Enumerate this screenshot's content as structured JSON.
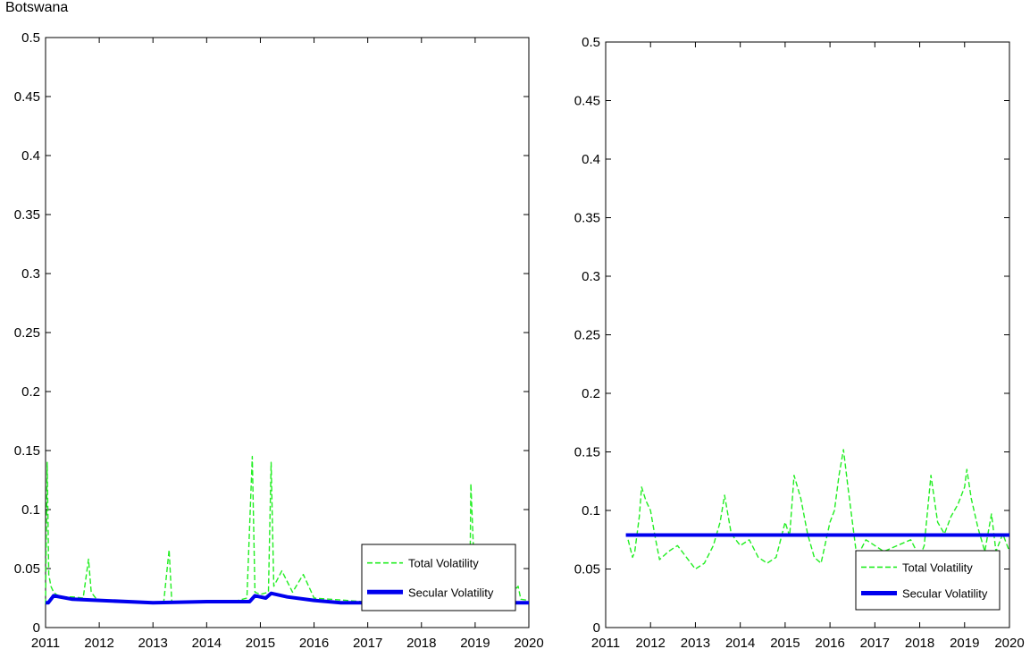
{
  "title": "Botswana",
  "colors": {
    "total": "#22ee22",
    "secular": "#0000ee",
    "axis": "#000000"
  },
  "legend": {
    "total_label": "Total Volatility",
    "secular_label": "Secular Volatility",
    "placement": "bottom-right"
  },
  "chart_data": [
    {
      "type": "line",
      "xlim": [
        2011,
        2020
      ],
      "ylim": [
        0,
        0.5
      ],
      "xticks": [
        "2011",
        "2012",
        "2013",
        "2014",
        "2015",
        "2016",
        "2017",
        "2018",
        "2019",
        "2020"
      ],
      "yticks": [
        "0",
        "0.05",
        "0.1",
        "0.15",
        "0.2",
        "0.25",
        "0.3",
        "0.35",
        "0.4",
        "0.45",
        "0.5"
      ],
      "grid": false,
      "series": [
        {
          "name": "Total Volatility",
          "style": "dashed",
          "x": [
            2011.0,
            2011.03,
            2011.06,
            2011.1,
            2011.15,
            2011.2,
            2011.3,
            2011.5,
            2011.7,
            2011.8,
            2011.85,
            2011.95,
            2012.2,
            2012.5,
            2012.8,
            2013.0,
            2013.2,
            2013.3,
            2013.35,
            2013.5,
            2013.8,
            2014.0,
            2014.3,
            2014.5,
            2014.75,
            2014.85,
            2014.9,
            2015.0,
            2015.15,
            2015.2,
            2015.25,
            2015.4,
            2015.6,
            2015.8,
            2016.0,
            2016.3,
            2016.6,
            2016.9,
            2017.2,
            2017.5,
            2017.8,
            2018.1,
            2018.4,
            2018.7,
            2018.9,
            2018.92,
            2019.0,
            2019.3,
            2019.6,
            2019.8,
            2019.85,
            2020.0
          ],
          "y": [
            0.02,
            0.14,
            0.045,
            0.035,
            0.03,
            0.028,
            0.026,
            0.026,
            0.025,
            0.058,
            0.03,
            0.024,
            0.023,
            0.022,
            0.021,
            0.021,
            0.021,
            0.066,
            0.022,
            0.022,
            0.022,
            0.022,
            0.022,
            0.022,
            0.025,
            0.145,
            0.03,
            0.028,
            0.03,
            0.14,
            0.035,
            0.048,
            0.03,
            0.045,
            0.025,
            0.024,
            0.023,
            0.022,
            0.022,
            0.022,
            0.022,
            0.022,
            0.022,
            0.023,
            0.028,
            0.122,
            0.03,
            0.025,
            0.025,
            0.035,
            0.024,
            0.023
          ]
        },
        {
          "name": "Secular Volatility",
          "style": "solid",
          "x": [
            2011.0,
            2011.05,
            2011.15,
            2011.5,
            2012.0,
            2013.0,
            2014.0,
            2014.8,
            2014.9,
            2015.0,
            2015.1,
            2015.2,
            2015.5,
            2016.0,
            2016.5,
            2017.0,
            2018.0,
            2019.0,
            2020.0
          ],
          "y": [
            0.021,
            0.021,
            0.027,
            0.024,
            0.023,
            0.021,
            0.022,
            0.022,
            0.027,
            0.026,
            0.025,
            0.029,
            0.026,
            0.023,
            0.021,
            0.021,
            0.021,
            0.021,
            0.021
          ]
        }
      ]
    },
    {
      "type": "line",
      "xlim": [
        2011,
        2020
      ],
      "ylim": [
        0,
        0.5
      ],
      "xticks": [
        "2011",
        "2012",
        "2013",
        "2014",
        "2015",
        "2016",
        "2017",
        "2018",
        "2019",
        "2020"
      ],
      "yticks": [
        "0",
        "0.05",
        "0.1",
        "0.15",
        "0.2",
        "0.25",
        "0.3",
        "0.35",
        "0.4",
        "0.45",
        "0.5"
      ],
      "grid": false,
      "series": [
        {
          "name": "Total Volatility",
          "style": "dashed",
          "x": [
            2011.5,
            2011.6,
            2011.65,
            2011.75,
            2011.8,
            2011.9,
            2012.0,
            2012.1,
            2012.2,
            2012.4,
            2012.6,
            2012.8,
            2013.0,
            2013.2,
            2013.4,
            2013.55,
            2013.65,
            2013.8,
            2014.0,
            2014.2,
            2014.4,
            2014.6,
            2014.8,
            2015.0,
            2015.1,
            2015.2,
            2015.35,
            2015.5,
            2015.65,
            2015.8,
            2016.0,
            2016.1,
            2016.2,
            2016.3,
            2016.4,
            2016.5,
            2016.6,
            2016.8,
            2017.0,
            2017.2,
            2017.5,
            2017.8,
            2018.0,
            2018.1,
            2018.25,
            2018.4,
            2018.55,
            2018.7,
            2018.85,
            2019.0,
            2019.05,
            2019.15,
            2019.3,
            2019.45,
            2019.6,
            2019.7,
            2019.85,
            2020.0
          ],
          "y": [
            0.075,
            0.06,
            0.065,
            0.095,
            0.12,
            0.108,
            0.1,
            0.078,
            0.058,
            0.065,
            0.07,
            0.06,
            0.05,
            0.055,
            0.07,
            0.09,
            0.113,
            0.08,
            0.07,
            0.075,
            0.06,
            0.055,
            0.06,
            0.09,
            0.078,
            0.13,
            0.11,
            0.08,
            0.06,
            0.055,
            0.09,
            0.1,
            0.13,
            0.152,
            0.12,
            0.09,
            0.06,
            0.075,
            0.07,
            0.065,
            0.07,
            0.075,
            0.06,
            0.07,
            0.13,
            0.09,
            0.08,
            0.095,
            0.105,
            0.12,
            0.135,
            0.11,
            0.085,
            0.065,
            0.097,
            0.065,
            0.08,
            0.065
          ]
        },
        {
          "name": "Secular Volatility",
          "style": "solid",
          "x": [
            2011.45,
            2020.0
          ],
          "y": [
            0.079,
            0.079
          ]
        }
      ]
    }
  ]
}
